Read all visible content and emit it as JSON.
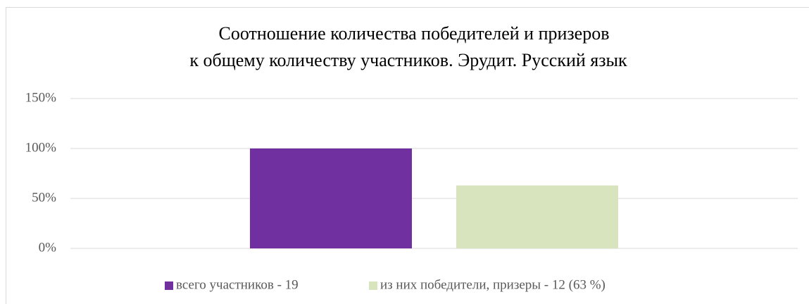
{
  "chart_data": {
    "type": "bar",
    "title": [
      "Соотношение количества победителей и призеров",
      "к общему количеству участников. Эрудит. Русский язык"
    ],
    "categories": [
      null
    ],
    "series": [
      {
        "name": "всего участников - 19",
        "color": "#7030a0",
        "values": [
          100
        ]
      },
      {
        "name": "из них победители, призеры - 12 (63 %)",
        "color": "#d7e4bd",
        "values": [
          63
        ]
      }
    ],
    "ylim": [
      0,
      150
    ],
    "yticks": [
      {
        "value": 0,
        "label": "0%"
      },
      {
        "value": 50,
        "label": "50%"
      },
      {
        "value": 100,
        "label": "100%"
      },
      {
        "value": 150,
        "label": "150%"
      }
    ],
    "grid": true,
    "legend": "bottom"
  }
}
